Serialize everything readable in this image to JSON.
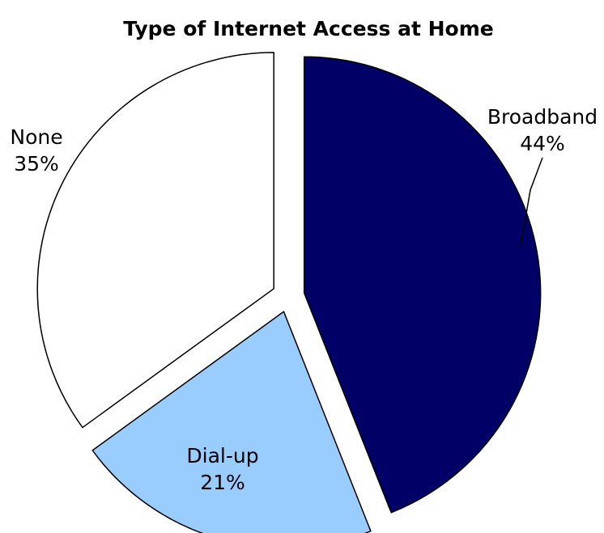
{
  "chart_data": {
    "type": "pie",
    "title": "Type of Internet Access at Home",
    "slices": [
      {
        "label": "Broadband",
        "value": 44,
        "value_label": "44%",
        "color": "#000066"
      },
      {
        "label": "Dial-up",
        "value": 21,
        "value_label": "21%",
        "color": "#99ccff"
      },
      {
        "label": "None",
        "value": 35,
        "value_label": "35%",
        "color": "#ffffff"
      }
    ],
    "start_angle": "12 o'clock",
    "direction": "clockwise",
    "exploded": true,
    "legend": "none"
  }
}
